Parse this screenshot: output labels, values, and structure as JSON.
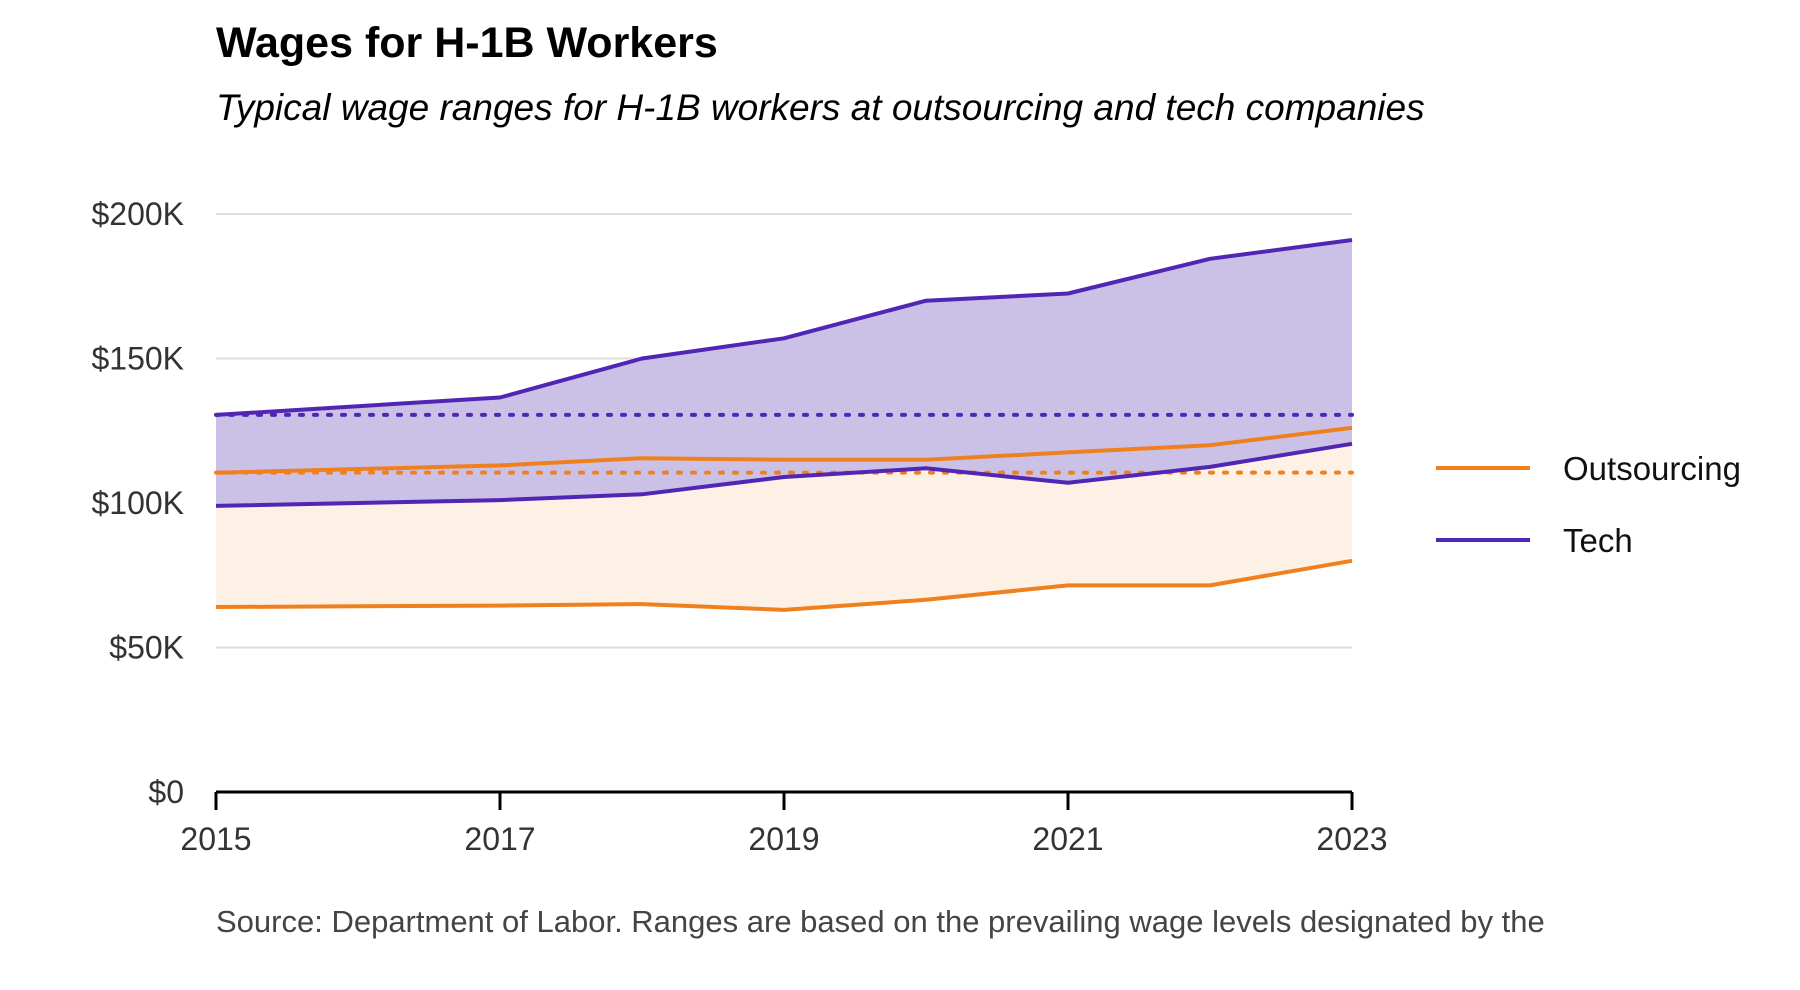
{
  "chart_data": {
    "type": "area",
    "title": "Wages for H-1B Workers",
    "subtitle": "Typical wage ranges for H-1B workers at outsourcing and tech companies",
    "caption": "Source: Department of Labor. Ranges are based on the prevailing wage levels designated by the",
    "x": [
      2015,
      2017,
      2018,
      2019,
      2020,
      2021,
      2022,
      2023
    ],
    "xticks": [
      "2015",
      "2017",
      "2019",
      "2021",
      "2023"
    ],
    "yticks": [
      "$0",
      "$50K",
      "$100K",
      "$150K",
      "$200K"
    ],
    "ylim": [
      0,
      200000
    ],
    "xlim": [
      2015,
      2023
    ],
    "grid": true,
    "legend_position": "right",
    "series": [
      {
        "name": "Outsourcing",
        "color": "#F0801E",
        "fill_color": "#FDF1E6",
        "upper": [
          110500,
          113000,
          115500,
          115000,
          115000,
          117500,
          120000,
          126000
        ],
        "lower": [
          64000,
          64500,
          65000,
          63000,
          66500,
          71500,
          71500,
          80000
        ],
        "reference_value": 110500
      },
      {
        "name": "Tech",
        "color": "#5126B4",
        "fill_color": "#C8BEE6",
        "upper": [
          130500,
          136500,
          150000,
          157000,
          170000,
          172500,
          184500,
          191000
        ],
        "lower": [
          99000,
          101000,
          103000,
          109000,
          112000,
          107000,
          112500,
          120500
        ],
        "reference_value": 130500
      }
    ]
  }
}
